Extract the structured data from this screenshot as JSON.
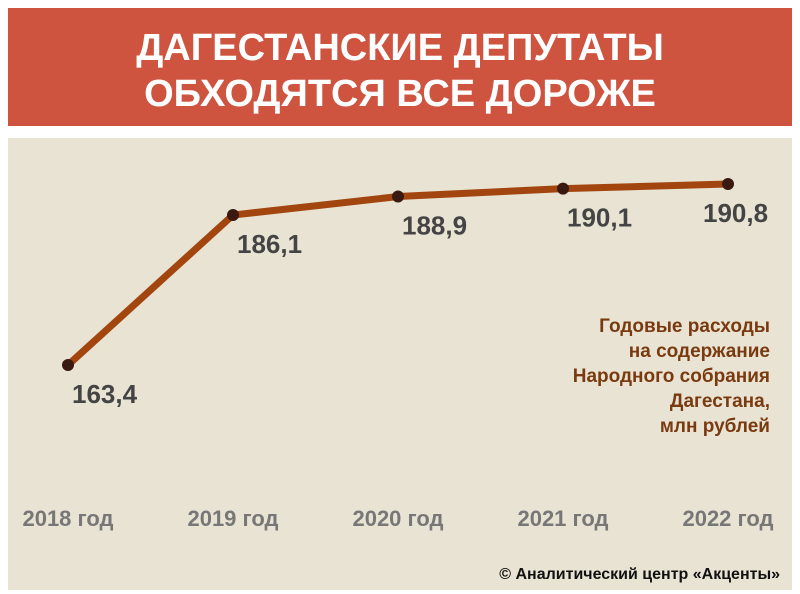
{
  "chart_data": {
    "type": "line",
    "title": [
      "ДАГЕСТАНСКИЕ  ДЕПУТАТЫ",
      "ОБХОДЯТСЯ  ВСЕ  ДОРОЖЕ"
    ],
    "categories": [
      "2018 год",
      "2019 год",
      "2020 год",
      "2021 год",
      "2022 год"
    ],
    "values": [
      163.4,
      186.1,
      188.9,
      190.1,
      190.8
    ],
    "value_labels": [
      "163,4",
      "186,1",
      "188,9",
      "190,1",
      "190,8"
    ],
    "color": "#a3450f",
    "annotation": [
      "Годовые расходы",
      "на содержание",
      "Народного собрания",
      "Дагестана,",
      "млн рублей"
    ],
    "source": "©  Аналитический центр «Акценты»"
  }
}
